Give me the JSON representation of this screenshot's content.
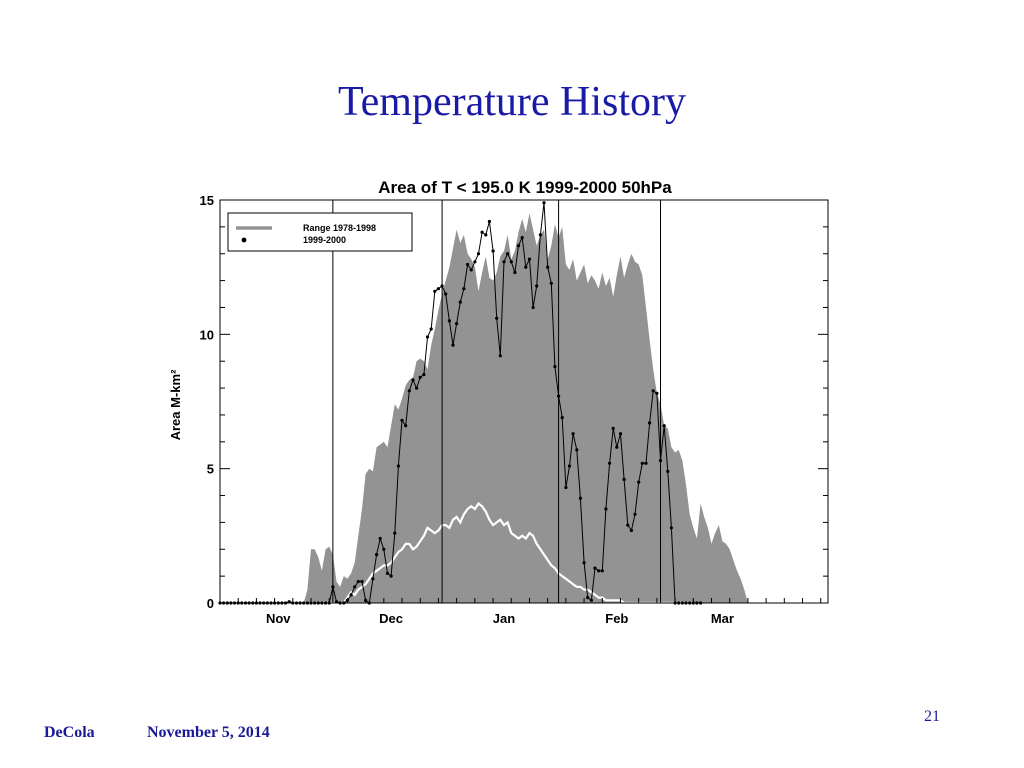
{
  "slide": {
    "title": "Temperature History",
    "footer_author": "DeCola",
    "footer_date": "November 5, 2014",
    "slide_number": "21"
  },
  "colors": {
    "title": "#1a1aa8",
    "footer": "#1a1a99",
    "range_fill": "#939393",
    "mean_line": "#ffffff",
    "series_line": "#000000"
  },
  "chart_data": {
    "type": "area",
    "title": "Area of T < 195.0 K 1999-2000 50hPa",
    "xlabel": "",
    "ylabel": "Area M-km²",
    "ylim": [
      0,
      15
    ],
    "y_ticks": [
      0,
      5,
      10,
      15
    ],
    "x_axis": "day index from start of plotted period (~Oct 16 to Mar 31)",
    "xlim": [
      0,
      167
    ],
    "x_tick_labels": [
      {
        "label": "Nov",
        "x": 16
      },
      {
        "label": "Dec",
        "x": 47
      },
      {
        "label": "Jan",
        "x": 78
      },
      {
        "label": "Feb",
        "x": 109
      },
      {
        "label": "Mar",
        "x": 138
      }
    ],
    "vertical_lines_x": [
      31,
      61,
      93,
      121
    ],
    "legend": {
      "position": "top-left",
      "entries": [
        "Range 1978-1998",
        "1999-2000"
      ]
    },
    "grid": false,
    "range_band": {
      "name": "Range 1978-1998",
      "upper": [
        [
          0,
          0
        ],
        [
          23,
          0
        ],
        [
          24,
          0.5
        ],
        [
          25,
          2
        ],
        [
          26,
          2
        ],
        [
          27,
          1.7
        ],
        [
          28,
          1.2
        ],
        [
          29,
          2
        ],
        [
          30,
          2.1
        ],
        [
          31,
          1.8
        ],
        [
          32,
          0.8
        ],
        [
          33,
          0.6
        ],
        [
          34,
          1.0
        ],
        [
          35,
          0.9
        ],
        [
          36,
          1.1
        ],
        [
          37,
          1.5
        ],
        [
          38,
          2.5
        ],
        [
          39,
          3.5
        ],
        [
          40,
          4.8
        ],
        [
          41,
          5.0
        ],
        [
          42,
          4.9
        ],
        [
          43,
          5.8
        ],
        [
          44,
          5.9
        ],
        [
          45,
          6.0
        ],
        [
          46,
          5.8
        ],
        [
          47,
          6.6
        ],
        [
          48,
          7.4
        ],
        [
          49,
          7.2
        ],
        [
          50,
          7.6
        ],
        [
          51,
          8.1
        ],
        [
          52,
          8.3
        ],
        [
          53,
          8.4
        ],
        [
          54,
          9.0
        ],
        [
          55,
          9.1
        ],
        [
          56,
          9.0
        ],
        [
          57,
          8.7
        ],
        [
          58,
          9.6
        ],
        [
          59,
          10.2
        ],
        [
          60,
          10.9
        ],
        [
          61,
          11.5
        ],
        [
          62,
          12.0
        ],
        [
          63,
          12.5
        ],
        [
          64,
          13.2
        ],
        [
          65,
          13.9
        ],
        [
          66,
          13.4
        ],
        [
          67,
          13.7
        ],
        [
          68,
          13.0
        ],
        [
          69,
          12.8
        ],
        [
          70,
          12.5
        ],
        [
          71,
          11.6
        ],
        [
          72,
          12.3
        ],
        [
          73,
          12.9
        ],
        [
          74,
          12.1
        ],
        [
          75,
          12.0
        ],
        [
          76,
          12.3
        ],
        [
          77,
          12.9
        ],
        [
          78,
          13.1
        ],
        [
          79,
          13.7
        ],
        [
          80,
          12.8
        ],
        [
          81,
          13.1
        ],
        [
          82,
          13.8
        ],
        [
          83,
          14.3
        ],
        [
          84,
          13.8
        ],
        [
          85,
          14.5
        ],
        [
          86,
          13.9
        ],
        [
          87,
          13.3
        ],
        [
          88,
          13.7
        ],
        [
          89,
          13.9
        ],
        [
          90,
          12.8
        ],
        [
          91,
          13.3
        ],
        [
          92,
          14.1
        ],
        [
          93,
          13.6
        ],
        [
          94,
          14.0
        ],
        [
          95,
          12.6
        ],
        [
          96,
          12.4
        ],
        [
          97,
          12.8
        ],
        [
          98,
          12.0
        ],
        [
          99,
          12.3
        ],
        [
          100,
          12.6
        ],
        [
          101,
          11.9
        ],
        [
          102,
          12.2
        ],
        [
          103,
          12.0
        ],
        [
          104,
          11.7
        ],
        [
          105,
          12.3
        ],
        [
          106,
          11.8
        ],
        [
          107,
          12.1
        ],
        [
          108,
          11.4
        ],
        [
          109,
          12.2
        ],
        [
          110,
          12.9
        ],
        [
          111,
          12.1
        ],
        [
          112,
          12.6
        ],
        [
          113,
          13.0
        ],
        [
          114,
          12.7
        ],
        [
          115,
          12.6
        ],
        [
          116,
          12.2
        ],
        [
          117,
          11.0
        ],
        [
          118,
          9.8
        ],
        [
          119,
          8.7
        ],
        [
          120,
          7.8
        ],
        [
          121,
          7.4
        ],
        [
          122,
          6.6
        ],
        [
          123,
          6.5
        ],
        [
          124,
          5.8
        ],
        [
          125,
          5.6
        ],
        [
          126,
          5.7
        ],
        [
          127,
          5.3
        ],
        [
          128,
          4.4
        ],
        [
          129,
          3.3
        ],
        [
          130,
          2.8
        ],
        [
          131,
          2.4
        ],
        [
          132,
          3.7
        ],
        [
          133,
          3.2
        ],
        [
          134,
          2.8
        ],
        [
          135,
          2.2
        ],
        [
          136,
          2.6
        ],
        [
          137,
          2.9
        ],
        [
          138,
          2.3
        ],
        [
          139,
          2.2
        ],
        [
          140,
          2.0
        ],
        [
          141,
          1.6
        ],
        [
          142,
          1.2
        ],
        [
          143,
          0.9
        ],
        [
          144,
          0.5
        ],
        [
          145,
          0
        ]
      ],
      "lower": 0
    },
    "series": [
      {
        "name": "1999-2000",
        "points": [
          [
            0,
            0
          ],
          [
            1,
            0
          ],
          [
            2,
            0
          ],
          [
            3,
            0
          ],
          [
            4,
            0
          ],
          [
            5,
            0
          ],
          [
            6,
            0
          ],
          [
            7,
            0
          ],
          [
            8,
            0
          ],
          [
            9,
            0
          ],
          [
            10,
            0
          ],
          [
            11,
            0
          ],
          [
            12,
            0
          ],
          [
            13,
            0
          ],
          [
            14,
            0
          ],
          [
            15,
            0
          ],
          [
            16,
            0
          ],
          [
            17,
            0
          ],
          [
            18,
            0
          ],
          [
            19,
            0.05
          ],
          [
            20,
            0
          ],
          [
            21,
            0
          ],
          [
            22,
            0
          ],
          [
            23,
            0
          ],
          [
            24,
            0
          ],
          [
            25,
            0
          ],
          [
            26,
            0
          ],
          [
            27,
            0
          ],
          [
            28,
            0
          ],
          [
            29,
            0
          ],
          [
            30,
            0
          ],
          [
            31,
            0.6
          ],
          [
            32,
            0.05
          ],
          [
            33,
            0
          ],
          [
            34,
            0
          ],
          [
            35,
            0.1
          ],
          [
            36,
            0.3
          ],
          [
            37,
            0.6
          ],
          [
            38,
            0.8
          ],
          [
            39,
            0.8
          ],
          [
            40,
            0.1
          ],
          [
            41,
            0
          ],
          [
            42,
            0.9
          ],
          [
            43,
            1.8
          ],
          [
            44,
            2.4
          ],
          [
            45,
            2.0
          ],
          [
            46,
            1.1
          ],
          [
            47,
            1.0
          ],
          [
            48,
            2.6
          ],
          [
            49,
            5.1
          ],
          [
            50,
            6.8
          ],
          [
            51,
            6.6
          ],
          [
            52,
            7.9
          ],
          [
            53,
            8.3
          ],
          [
            54,
            8.0
          ],
          [
            55,
            8.4
          ],
          [
            56,
            8.5
          ],
          [
            57,
            9.9
          ],
          [
            58,
            10.2
          ],
          [
            59,
            11.6
          ],
          [
            60,
            11.7
          ],
          [
            61,
            11.8
          ],
          [
            62,
            11.5
          ],
          [
            63,
            10.5
          ],
          [
            64,
            9.6
          ],
          [
            65,
            10.4
          ],
          [
            66,
            11.2
          ],
          [
            67,
            11.7
          ],
          [
            68,
            12.6
          ],
          [
            69,
            12.4
          ],
          [
            70,
            12.7
          ],
          [
            71,
            13.0
          ],
          [
            72,
            13.8
          ],
          [
            73,
            13.7
          ],
          [
            74,
            14.2
          ],
          [
            75,
            13.1
          ],
          [
            76,
            10.6
          ],
          [
            77,
            9.2
          ],
          [
            78,
            12.7
          ],
          [
            79,
            13.0
          ],
          [
            80,
            12.7
          ],
          [
            81,
            12.3
          ],
          [
            82,
            13.3
          ],
          [
            83,
            13.6
          ],
          [
            84,
            12.5
          ],
          [
            85,
            12.8
          ],
          [
            86,
            11.0
          ],
          [
            87,
            11.8
          ],
          [
            88,
            13.7
          ],
          [
            89,
            14.9
          ],
          [
            90,
            12.5
          ],
          [
            91,
            11.9
          ],
          [
            92,
            8.8
          ],
          [
            93,
            7.7
          ],
          [
            94,
            6.9
          ],
          [
            95,
            4.3
          ],
          [
            96,
            5.1
          ],
          [
            97,
            6.3
          ],
          [
            98,
            5.7
          ],
          [
            99,
            3.9
          ],
          [
            100,
            1.5
          ],
          [
            101,
            0.2
          ],
          [
            102,
            0.1
          ],
          [
            103,
            1.3
          ],
          [
            104,
            1.2
          ],
          [
            105,
            1.2
          ],
          [
            106,
            3.5
          ],
          [
            107,
            5.2
          ],
          [
            108,
            6.5
          ],
          [
            109,
            5.8
          ],
          [
            110,
            6.3
          ],
          [
            111,
            4.6
          ],
          [
            112,
            2.9
          ],
          [
            113,
            2.7
          ],
          [
            114,
            3.3
          ],
          [
            115,
            4.5
          ],
          [
            116,
            5.2
          ],
          [
            117,
            5.2
          ],
          [
            118,
            6.7
          ],
          [
            119,
            7.9
          ],
          [
            120,
            7.8
          ],
          [
            121,
            5.3
          ],
          [
            122,
            6.6
          ],
          [
            123,
            4.9
          ],
          [
            124,
            2.8
          ],
          [
            125,
            0
          ],
          [
            126,
            0
          ],
          [
            127,
            0
          ],
          [
            128,
            0
          ],
          [
            129,
            0
          ],
          [
            130,
            0
          ],
          [
            131,
            0
          ],
          [
            132,
            0
          ]
        ]
      },
      {
        "name": "",
        "role": "mean (white line, unlabeled)",
        "points": [
          [
            0,
            0
          ],
          [
            34,
            0
          ],
          [
            35,
            0.2
          ],
          [
            36,
            0.4
          ],
          [
            37,
            0.3
          ],
          [
            38,
            0.5
          ],
          [
            39,
            0.6
          ],
          [
            40,
            0.7
          ],
          [
            41,
            0.9
          ],
          [
            42,
            1.1
          ],
          [
            43,
            1.2
          ],
          [
            44,
            1.3
          ],
          [
            45,
            1.4
          ],
          [
            46,
            1.4
          ],
          [
            47,
            1.5
          ],
          [
            48,
            1.7
          ],
          [
            49,
            1.9
          ],
          [
            50,
            2.0
          ],
          [
            51,
            2.2
          ],
          [
            52,
            2.2
          ],
          [
            53,
            2.0
          ],
          [
            54,
            2.1
          ],
          [
            55,
            2.3
          ],
          [
            56,
            2.5
          ],
          [
            57,
            2.8
          ],
          [
            58,
            2.7
          ],
          [
            59,
            2.6
          ],
          [
            60,
            2.7
          ],
          [
            61,
            2.9
          ],
          [
            62,
            2.9
          ],
          [
            63,
            2.8
          ],
          [
            64,
            3.1
          ],
          [
            65,
            3.2
          ],
          [
            66,
            3.0
          ],
          [
            67,
            3.3
          ],
          [
            68,
            3.5
          ],
          [
            69,
            3.6
          ],
          [
            70,
            3.5
          ],
          [
            71,
            3.7
          ],
          [
            72,
            3.6
          ],
          [
            73,
            3.4
          ],
          [
            74,
            3.1
          ],
          [
            75,
            2.9
          ],
          [
            76,
            3.0
          ],
          [
            77,
            3.1
          ],
          [
            78,
            2.9
          ],
          [
            79,
            3.0
          ],
          [
            80,
            2.6
          ],
          [
            81,
            2.5
          ],
          [
            82,
            2.4
          ],
          [
            83,
            2.5
          ],
          [
            84,
            2.4
          ],
          [
            85,
            2.6
          ],
          [
            86,
            2.5
          ],
          [
            87,
            2.2
          ],
          [
            88,
            2.0
          ],
          [
            89,
            1.8
          ],
          [
            90,
            1.6
          ],
          [
            91,
            1.4
          ],
          [
            92,
            1.3
          ],
          [
            93,
            1.1
          ],
          [
            94,
            1.0
          ],
          [
            95,
            0.9
          ],
          [
            96,
            0.8
          ],
          [
            97,
            0.7
          ],
          [
            98,
            0.6
          ],
          [
            99,
            0.6
          ],
          [
            100,
            0.5
          ],
          [
            101,
            0.5
          ],
          [
            102,
            0.4
          ],
          [
            103,
            0.3
          ],
          [
            104,
            0.2
          ],
          [
            105,
            0.2
          ],
          [
            106,
            0.1
          ],
          [
            107,
            0.1
          ],
          [
            108,
            0.1
          ],
          [
            109,
            0.1
          ],
          [
            110,
            0.1
          ],
          [
            111,
            0
          ],
          [
            130,
            0
          ]
        ]
      }
    ]
  }
}
